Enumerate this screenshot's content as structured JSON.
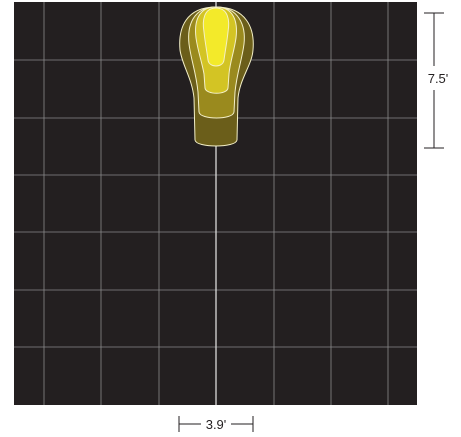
{
  "diagram": {
    "background_color": "#231f20",
    "grid_color": "#8a8a8a",
    "centerline_color": "#e8e8e8",
    "contour_colors": [
      "#6b5e1a",
      "#9a8a1e",
      "#d3c424",
      "#f3ea2a"
    ],
    "contour_stroke_color": "#f4f0c8",
    "grid_columns": 7,
    "grid_rows": 7,
    "dimension_vertical": {
      "label": "7.5'"
    },
    "dimension_horizontal": {
      "label": "3.9'"
    }
  }
}
